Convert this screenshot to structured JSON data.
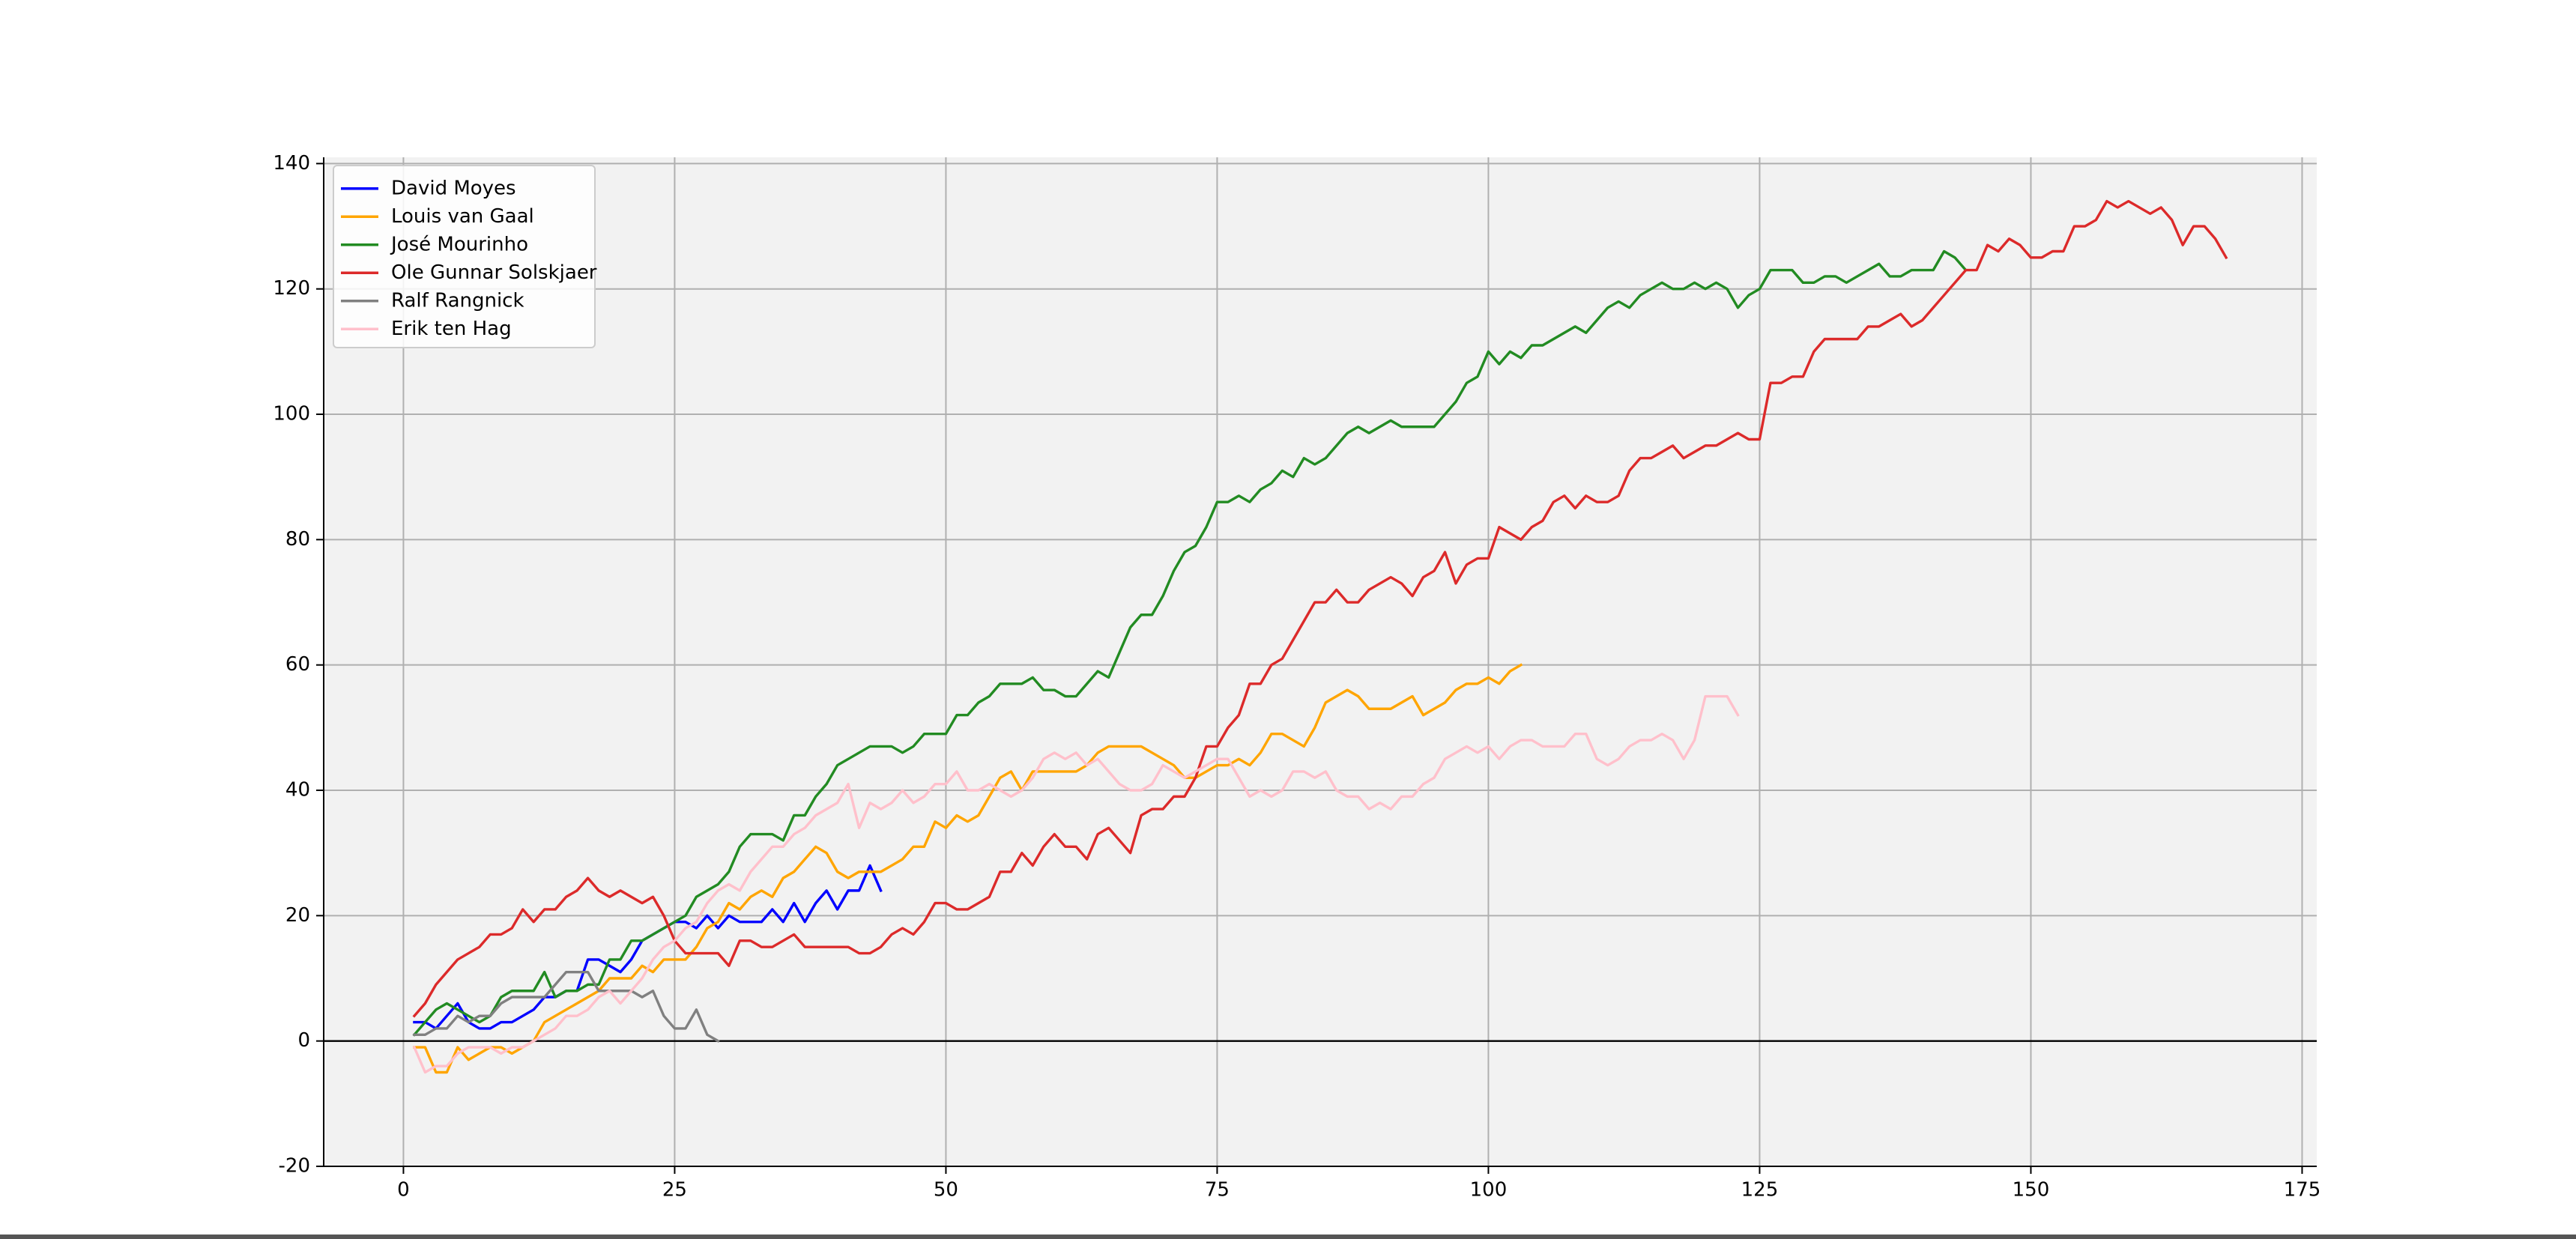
{
  "chart_data": {
    "type": "line",
    "xlim": [
      -7.35,
      176.35
    ],
    "ylim": [
      -20,
      141
    ],
    "xticks": [
      0,
      25,
      50,
      75,
      100,
      125,
      150,
      175
    ],
    "yticks": [
      -20,
      0,
      20,
      40,
      60,
      80,
      100,
      120,
      140
    ],
    "grid": true,
    "axhline": 0,
    "legend": "upper left",
    "series": [
      {
        "name": "David Moyes",
        "color": "#0000ff",
        "x": [
          1,
          2,
          3,
          4,
          5,
          6,
          7,
          8,
          9,
          10,
          11,
          12,
          13,
          14,
          15,
          16,
          17,
          18,
          19,
          20,
          21,
          22,
          23,
          24,
          25,
          26,
          27,
          28,
          29,
          30,
          31,
          32,
          33,
          34,
          35,
          36,
          37,
          38,
          39,
          40,
          41,
          42,
          43,
          44
        ],
        "values": [
          3,
          3,
          2,
          4,
          6,
          3,
          2,
          2,
          3,
          3,
          4,
          5,
          7,
          7,
          8,
          8,
          13,
          13,
          12,
          11,
          13,
          16,
          17,
          18,
          19,
          19,
          18,
          20,
          18,
          20,
          19,
          19,
          19,
          21,
          19,
          22,
          19,
          22,
          24,
          21,
          24,
          24,
          28,
          24
        ]
      },
      {
        "name": "Louis van Gaal",
        "color": "#ffa500",
        "x": [
          1,
          2,
          3,
          4,
          5,
          6,
          7,
          8,
          9,
          10,
          11,
          12,
          13,
          14,
          15,
          16,
          17,
          18,
          19,
          20,
          21,
          22,
          23,
          24,
          25,
          26,
          27,
          28,
          29,
          30,
          31,
          32,
          33,
          34,
          35,
          36,
          37,
          38,
          39,
          40,
          41,
          42,
          43,
          44,
          45,
          46,
          47,
          48,
          49,
          50,
          51,
          52,
          53,
          54,
          55,
          56,
          57,
          58,
          59,
          60,
          61,
          62,
          63,
          64,
          65,
          66,
          67,
          68,
          69,
          70,
          71,
          72,
          73,
          74,
          75,
          76,
          77,
          78,
          79,
          80,
          81,
          82,
          83,
          84,
          85,
          86,
          87,
          88,
          89,
          90,
          91,
          92,
          93,
          94,
          95,
          96,
          97,
          98,
          99,
          100,
          101,
          102,
          103
        ],
        "values": [
          -1,
          -1,
          -5,
          -5,
          -1,
          -3,
          -2,
          -1,
          -1,
          -2,
          -1,
          0,
          3,
          4,
          5,
          6,
          7,
          8,
          10,
          10,
          10,
          12,
          11,
          13,
          13,
          13,
          15,
          18,
          19,
          22,
          21,
          23,
          24,
          23,
          26,
          27,
          29,
          31,
          30,
          27,
          26,
          27,
          27,
          27,
          28,
          29,
          31,
          31,
          35,
          34,
          36,
          35,
          36,
          39,
          42,
          43,
          40,
          43,
          43,
          43,
          43,
          43,
          44,
          46,
          47,
          47,
          47,
          47,
          46,
          45,
          44,
          42,
          42,
          43,
          44,
          44,
          45,
          44,
          46,
          49,
          49,
          48,
          47,
          50,
          54,
          55,
          56,
          55,
          53,
          53,
          53,
          54,
          55,
          52,
          53,
          54,
          56,
          57,
          57,
          58,
          57,
          59,
          60
        ]
      },
      {
        "name": "José Mourinho",
        "color": "#228b22",
        "x": [
          1,
          2,
          3,
          4,
          5,
          6,
          7,
          8,
          9,
          10,
          11,
          12,
          13,
          14,
          15,
          16,
          17,
          18,
          19,
          20,
          21,
          22,
          23,
          24,
          25,
          26,
          27,
          28,
          29,
          30,
          31,
          32,
          33,
          34,
          35,
          36,
          37,
          38,
          39,
          40,
          41,
          42,
          43,
          44,
          45,
          46,
          47,
          48,
          49,
          50,
          51,
          52,
          53,
          54,
          55,
          56,
          57,
          58,
          59,
          60,
          61,
          62,
          63,
          64,
          65,
          66,
          67,
          68,
          69,
          70,
          71,
          72,
          73,
          74,
          75,
          76,
          77,
          78,
          79,
          80,
          81,
          82,
          83,
          84,
          85,
          86,
          87,
          88,
          89,
          90,
          91,
          92,
          93,
          94,
          95,
          96,
          97,
          98,
          99,
          100,
          101,
          102,
          103,
          104,
          105,
          106,
          107,
          108,
          109,
          110,
          111,
          112,
          113,
          114,
          115,
          116,
          117,
          118,
          119,
          120,
          121,
          122,
          123,
          124,
          125,
          126,
          127,
          128,
          129,
          130,
          131,
          132,
          133,
          134,
          135,
          136,
          137,
          138,
          139,
          140,
          141,
          142,
          143,
          144
        ],
        "values": [
          1,
          3,
          5,
          6,
          5,
          4,
          3,
          4,
          7,
          8,
          8,
          8,
          11,
          7,
          8,
          8,
          9,
          9,
          13,
          13,
          16,
          16,
          17,
          18,
          19,
          20,
          23,
          24,
          25,
          27,
          31,
          33,
          33,
          33,
          32,
          36,
          36,
          39,
          41,
          44,
          45,
          46,
          47,
          47,
          47,
          46,
          47,
          49,
          49,
          49,
          52,
          52,
          54,
          55,
          57,
          57,
          57,
          58,
          56,
          56,
          55,
          55,
          57,
          59,
          58,
          62,
          66,
          68,
          68,
          71,
          75,
          78,
          79,
          82,
          86,
          86,
          87,
          86,
          88,
          89,
          91,
          90,
          93,
          92,
          93,
          95,
          97,
          98,
          97,
          98,
          99,
          98,
          98,
          98,
          98,
          100,
          102,
          105,
          106,
          110,
          108,
          110,
          109,
          111,
          111,
          112,
          113,
          114,
          113,
          115,
          117,
          118,
          117,
          119,
          120,
          121,
          120,
          120,
          121,
          120,
          121,
          120,
          117,
          119,
          120,
          123,
          123,
          123,
          121,
          121,
          122,
          122,
          121,
          122,
          123,
          124,
          122,
          122,
          123,
          123,
          123,
          126,
          125,
          123
        ]
      },
      {
        "name": "Ole Gunnar Solskjaer",
        "color": "#dc2a2a",
        "x": [
          1,
          2,
          3,
          4,
          5,
          6,
          7,
          8,
          9,
          10,
          11,
          12,
          13,
          14,
          15,
          16,
          17,
          18,
          19,
          20,
          21,
          22,
          23,
          24,
          25,
          26,
          27,
          28,
          29,
          30,
          31,
          32,
          33,
          34,
          35,
          36,
          37,
          38,
          39,
          40,
          41,
          42,
          43,
          44,
          45,
          46,
          47,
          48,
          49,
          50,
          51,
          52,
          53,
          54,
          55,
          56,
          57,
          58,
          59,
          60,
          61,
          62,
          63,
          64,
          65,
          66,
          67,
          68,
          69,
          70,
          71,
          72,
          73,
          74,
          75,
          76,
          77,
          78,
          79,
          80,
          81,
          82,
          83,
          84,
          85,
          86,
          87,
          88,
          89,
          90,
          91,
          92,
          93,
          94,
          95,
          96,
          97,
          98,
          99,
          100,
          101,
          102,
          103,
          104,
          105,
          106,
          107,
          108,
          109,
          110,
          111,
          112,
          113,
          114,
          115,
          116,
          117,
          118,
          119,
          120,
          121,
          122,
          123,
          124,
          125,
          126,
          127,
          128,
          129,
          130,
          131,
          132,
          133,
          134,
          135,
          136,
          137,
          138,
          139,
          140,
          141,
          142,
          143,
          144,
          145,
          146,
          147,
          148,
          149,
          150,
          151,
          152,
          153,
          154,
          155,
          156,
          157,
          158,
          159,
          160,
          161,
          162,
          163,
          164,
          165,
          166,
          167,
          168
        ],
        "values": [
          4,
          6,
          9,
          11,
          13,
          14,
          15,
          17,
          17,
          18,
          21,
          19,
          21,
          21,
          23,
          24,
          26,
          24,
          23,
          24,
          23,
          22,
          23,
          20,
          16,
          14,
          14,
          14,
          14,
          12,
          16,
          16,
          15,
          15,
          16,
          17,
          15,
          15,
          15,
          15,
          15,
          14,
          14,
          15,
          17,
          18,
          17,
          19,
          22,
          22,
          21,
          21,
          22,
          23,
          27,
          27,
          30,
          28,
          31,
          33,
          31,
          31,
          29,
          33,
          34,
          32,
          30,
          36,
          37,
          37,
          39,
          39,
          42,
          47,
          47,
          50,
          52,
          57,
          57,
          60,
          61,
          64,
          67,
          70,
          70,
          72,
          70,
          70,
          72,
          73,
          74,
          73,
          71,
          74,
          75,
          78,
          73,
          76,
          77,
          77,
          82,
          81,
          80,
          82,
          83,
          86,
          87,
          85,
          87,
          86,
          86,
          87,
          91,
          93,
          93,
          94,
          95,
          93,
          94,
          95,
          95,
          96,
          97,
          96,
          96,
          105,
          105,
          106,
          106,
          110,
          112,
          112,
          112,
          112,
          114,
          114,
          115,
          116,
          114,
          115,
          117,
          119,
          121,
          123,
          123,
          127,
          126,
          128,
          127,
          125,
          125,
          126,
          126,
          130,
          130,
          131,
          134,
          133,
          134,
          133,
          132,
          133,
          131,
          127,
          130,
          130,
          128,
          125
        ]
      },
      {
        "name": "Ralf Rangnick",
        "color": "#808080",
        "x": [
          1,
          2,
          3,
          4,
          5,
          6,
          7,
          8,
          9,
          10,
          11,
          12,
          13,
          14,
          15,
          16,
          17,
          18,
          19,
          20,
          21,
          22,
          23,
          24,
          25,
          26,
          27,
          28,
          29
        ],
        "values": [
          1,
          1,
          2,
          2,
          4,
          3,
          4,
          4,
          6,
          7,
          7,
          7,
          7,
          9,
          11,
          11,
          11,
          8,
          8,
          8,
          8,
          7,
          8,
          4,
          2,
          2,
          5,
          1,
          0
        ]
      },
      {
        "name": "Erik ten Hag",
        "color": "#ffc0cb",
        "x": [
          1,
          2,
          3,
          4,
          5,
          6,
          7,
          8,
          9,
          10,
          11,
          12,
          13,
          14,
          15,
          16,
          17,
          18,
          19,
          20,
          21,
          22,
          23,
          24,
          25,
          26,
          27,
          28,
          29,
          30,
          31,
          32,
          33,
          34,
          35,
          36,
          37,
          38,
          39,
          40,
          41,
          42,
          43,
          44,
          45,
          46,
          47,
          48,
          49,
          50,
          51,
          52,
          53,
          54,
          55,
          56,
          57,
          58,
          59,
          60,
          61,
          62,
          63,
          64,
          65,
          66,
          67,
          68,
          69,
          70,
          71,
          72,
          73,
          74,
          75,
          76,
          77,
          78,
          79,
          80,
          81,
          82,
          83,
          84,
          85,
          86,
          87,
          88,
          89,
          90,
          91,
          92,
          93,
          94,
          95,
          96,
          97,
          98,
          99,
          100,
          101,
          102,
          103,
          104,
          105,
          106,
          107,
          108,
          109,
          110,
          111,
          112,
          113,
          114,
          115,
          116,
          117,
          118,
          119,
          120,
          121,
          122,
          123
        ],
        "values": [
          -1,
          -5,
          -4,
          -4,
          -2,
          -1,
          -1,
          -1,
          -2,
          -1,
          -1,
          0,
          1,
          2,
          4,
          4,
          5,
          7,
          8,
          6,
          8,
          10,
          13,
          15,
          16,
          18,
          19,
          22,
          24,
          25,
          24,
          27,
          29,
          31,
          31,
          33,
          34,
          36,
          37,
          38,
          41,
          34,
          38,
          37,
          38,
          40,
          38,
          39,
          41,
          41,
          43,
          40,
          40,
          41,
          40,
          39,
          40,
          42,
          45,
          46,
          45,
          46,
          44,
          45,
          43,
          41,
          40,
          40,
          41,
          44,
          43,
          42,
          43,
          44,
          45,
          45,
          42,
          39,
          40,
          39,
          40,
          43,
          43,
          42,
          43,
          40,
          39,
          39,
          37,
          38,
          37,
          39,
          39,
          41,
          42,
          45,
          46,
          47,
          46,
          47,
          45,
          47,
          48,
          48,
          47,
          47,
          47,
          49,
          49,
          45,
          44,
          45,
          47,
          48,
          48,
          49,
          48,
          45,
          48,
          55,
          55,
          55,
          52
        ]
      }
    ]
  }
}
